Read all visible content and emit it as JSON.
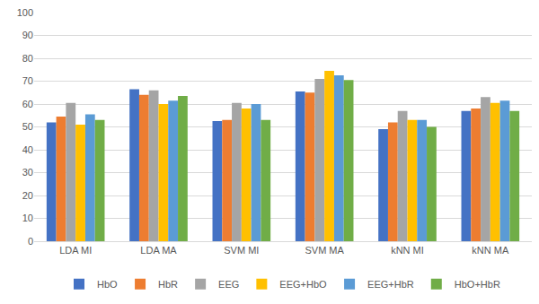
{
  "chart_data": {
    "type": "bar",
    "categories": [
      "LDA MI",
      "LDA MA",
      "SVM MI",
      "SVM MA",
      "kNN MI",
      "kNN MA"
    ],
    "series": [
      {
        "name": "HbO",
        "color": "#4472c4",
        "values": [
          52,
          66.5,
          52.5,
          65.5,
          49,
          57
        ]
      },
      {
        "name": "HbR",
        "color": "#ed7d31",
        "values": [
          54.5,
          64,
          53,
          65,
          52,
          58
        ]
      },
      {
        "name": "EEG",
        "color": "#a5a5a5",
        "values": [
          60.5,
          66,
          60.5,
          71,
          57,
          63
        ]
      },
      {
        "name": "EEG+HbO",
        "color": "#ffc000",
        "values": [
          51,
          60,
          58,
          74.5,
          53,
          60.5
        ]
      },
      {
        "name": "EEG+HbR",
        "color": "#5b9bd5",
        "values": [
          55.5,
          61.5,
          60,
          72.5,
          53,
          61.5
        ]
      },
      {
        "name": "HbO+HbR",
        "color": "#70ad47",
        "values": [
          53,
          63.5,
          53,
          70.5,
          50,
          57
        ]
      }
    ],
    "ylim": [
      0,
      100
    ],
    "yticks": [
      0,
      10,
      20,
      30,
      40,
      50,
      60,
      70,
      80,
      90,
      100
    ],
    "grid": true,
    "legend": "bottom"
  }
}
